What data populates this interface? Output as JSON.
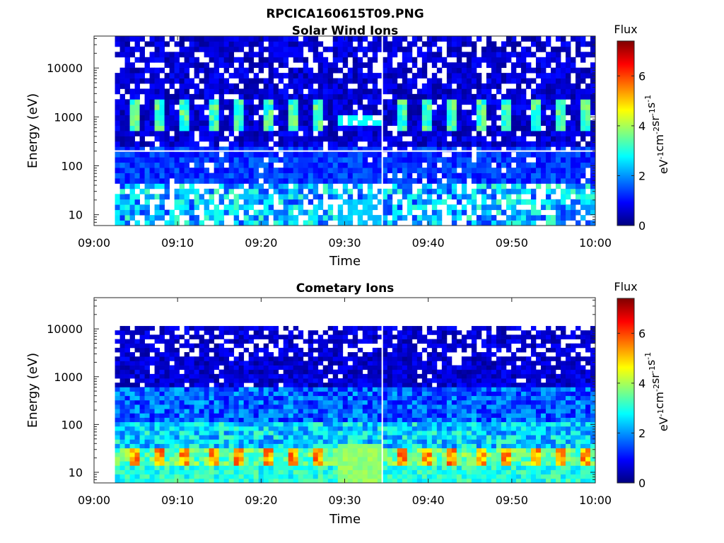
{
  "figure_title": "RPCICA160615T09.PNG",
  "chart_data": [
    {
      "type": "heatmap",
      "title": "Solar Wind Ions",
      "xlabel": "Time",
      "ylabel": "Energy (eV)",
      "x_ticks": [
        "09:00",
        "09:10",
        "09:20",
        "09:30",
        "09:40",
        "09:50",
        "10:00"
      ],
      "xlim": [
        "09:00",
        "10:00"
      ],
      "y_ticks": [
        10,
        100,
        1000,
        10000
      ],
      "y_tick_labels": [
        "10",
        "100",
        "1000",
        "10000"
      ],
      "ylim": [
        6,
        45000
      ],
      "y_scale": "log",
      "data_start": "09:02.5",
      "data_gap": "09:34.5",
      "colorbar": {
        "title": "Flux",
        "label": "eV-1cm-2sr-1s-1",
        "label_base": [
          "eV",
          "cm",
          "sr",
          "s"
        ],
        "label_exp": [
          "-1",
          "-2",
          "-1",
          "-1"
        ],
        "ticks": [
          "0",
          "2",
          "4",
          "6"
        ],
        "range": [
          0,
          7.4
        ],
        "colormap": "jet"
      },
      "features": [
        {
          "energy_range_eV": [
            500,
            2500
          ],
          "flux_range": [
            2.5,
            3.8
          ],
          "note": "periodic bursts about every 3 min"
        },
        {
          "energy_range_eV": [
            6,
            40
          ],
          "flux_range": [
            1.5,
            3.5
          ],
          "note": "patchy low-energy signal"
        }
      ]
    },
    {
      "type": "heatmap",
      "title": "Cometary Ions",
      "xlabel": "Time",
      "ylabel": "Energy (eV)",
      "x_ticks": [
        "09:00",
        "09:10",
        "09:20",
        "09:30",
        "09:40",
        "09:50",
        "10:00"
      ],
      "xlim": [
        "09:00",
        "10:00"
      ],
      "y_ticks": [
        10,
        100,
        1000,
        10000
      ],
      "y_tick_labels": [
        "10",
        "100",
        "1000",
        "10000"
      ],
      "ylim": [
        6,
        45000
      ],
      "y_scale": "log",
      "data_start": "09:02.5",
      "data_gap": "09:34.5",
      "colorbar": {
        "title": "Flux",
        "label": "eV-1cm-2sr-1s-1",
        "label_base": [
          "eV",
          "cm",
          "sr",
          "s"
        ],
        "label_exp": [
          "-1",
          "-2",
          "-1",
          "-1"
        ],
        "ticks": [
          "0",
          "2",
          "4",
          "6"
        ],
        "range": [
          0,
          7.4
        ],
        "colormap": "jet"
      },
      "features": [
        {
          "energy_range_eV": [
            12,
            30
          ],
          "flux_range": [
            4.5,
            6.0
          ],
          "note": "peaks about every 3 min"
        },
        {
          "energy_range_eV": [
            6,
            12
          ],
          "flux_range": [
            2.5,
            3.5
          ],
          "note": "steady low-energy band"
        }
      ]
    }
  ]
}
